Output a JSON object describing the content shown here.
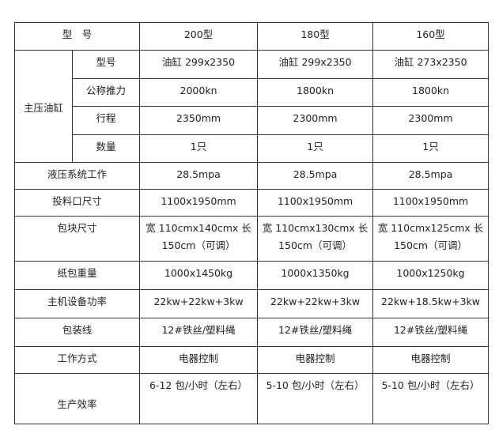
{
  "header": {
    "label": "型　号",
    "cols": [
      "200型",
      "180型",
      "160型"
    ]
  },
  "group_label": "主压油缸",
  "sub_rows": [
    {
      "label": "型号",
      "values": [
        "油缸 299x2350",
        "油缸 299x2350",
        "油缸 273x2350"
      ]
    },
    {
      "label": "公称推力",
      "values": [
        "2000kn",
        "1800kn",
        "1800kn"
      ]
    },
    {
      "label": "行程",
      "values": [
        "2350mm",
        "2300mm",
        "2300mm"
      ]
    },
    {
      "label": "数量",
      "values": [
        "1只",
        "1只",
        "1只"
      ]
    }
  ],
  "rows": [
    {
      "label": "液压系统工作",
      "values": [
        "28.5mpa",
        "28.5mpa",
        "28.5mpa"
      ]
    },
    {
      "label": "投料口尺寸",
      "values": [
        "1100x1950mm",
        "1100x1950mm",
        "1100x1950mm"
      ]
    },
    {
      "label": "包块尺寸",
      "values": [
        "宽 110cmx140cmx 长 150cm（可调）",
        "宽 110cmx130cmx 长 150cm（可调）",
        "宽 110cmx125cmx 长 150cm（可调）"
      ]
    },
    {
      "label": "纸包重量",
      "values": [
        "1000x1450kg",
        "1000x1350kg",
        "1000x1250kg"
      ]
    },
    {
      "label": "主机设备功率",
      "values": [
        "22kw+22kw+3kw",
        "22kw+22kw+3kw",
        "22kw+18.5kw+3kw"
      ]
    },
    {
      "label": "包装线",
      "values": [
        "12#铁丝/塑料绳",
        "12#铁丝/塑料绳",
        "12#铁丝/塑料绳"
      ]
    },
    {
      "label": "工作方式",
      "values": [
        "电器控制",
        "电器控制",
        "电器控制"
      ]
    },
    {
      "label": "生产效率",
      "values": [
        "6-12 包/小时（左右）",
        "5-10 包/小时（左右）",
        "5-10 包/小时（左右）"
      ]
    }
  ]
}
